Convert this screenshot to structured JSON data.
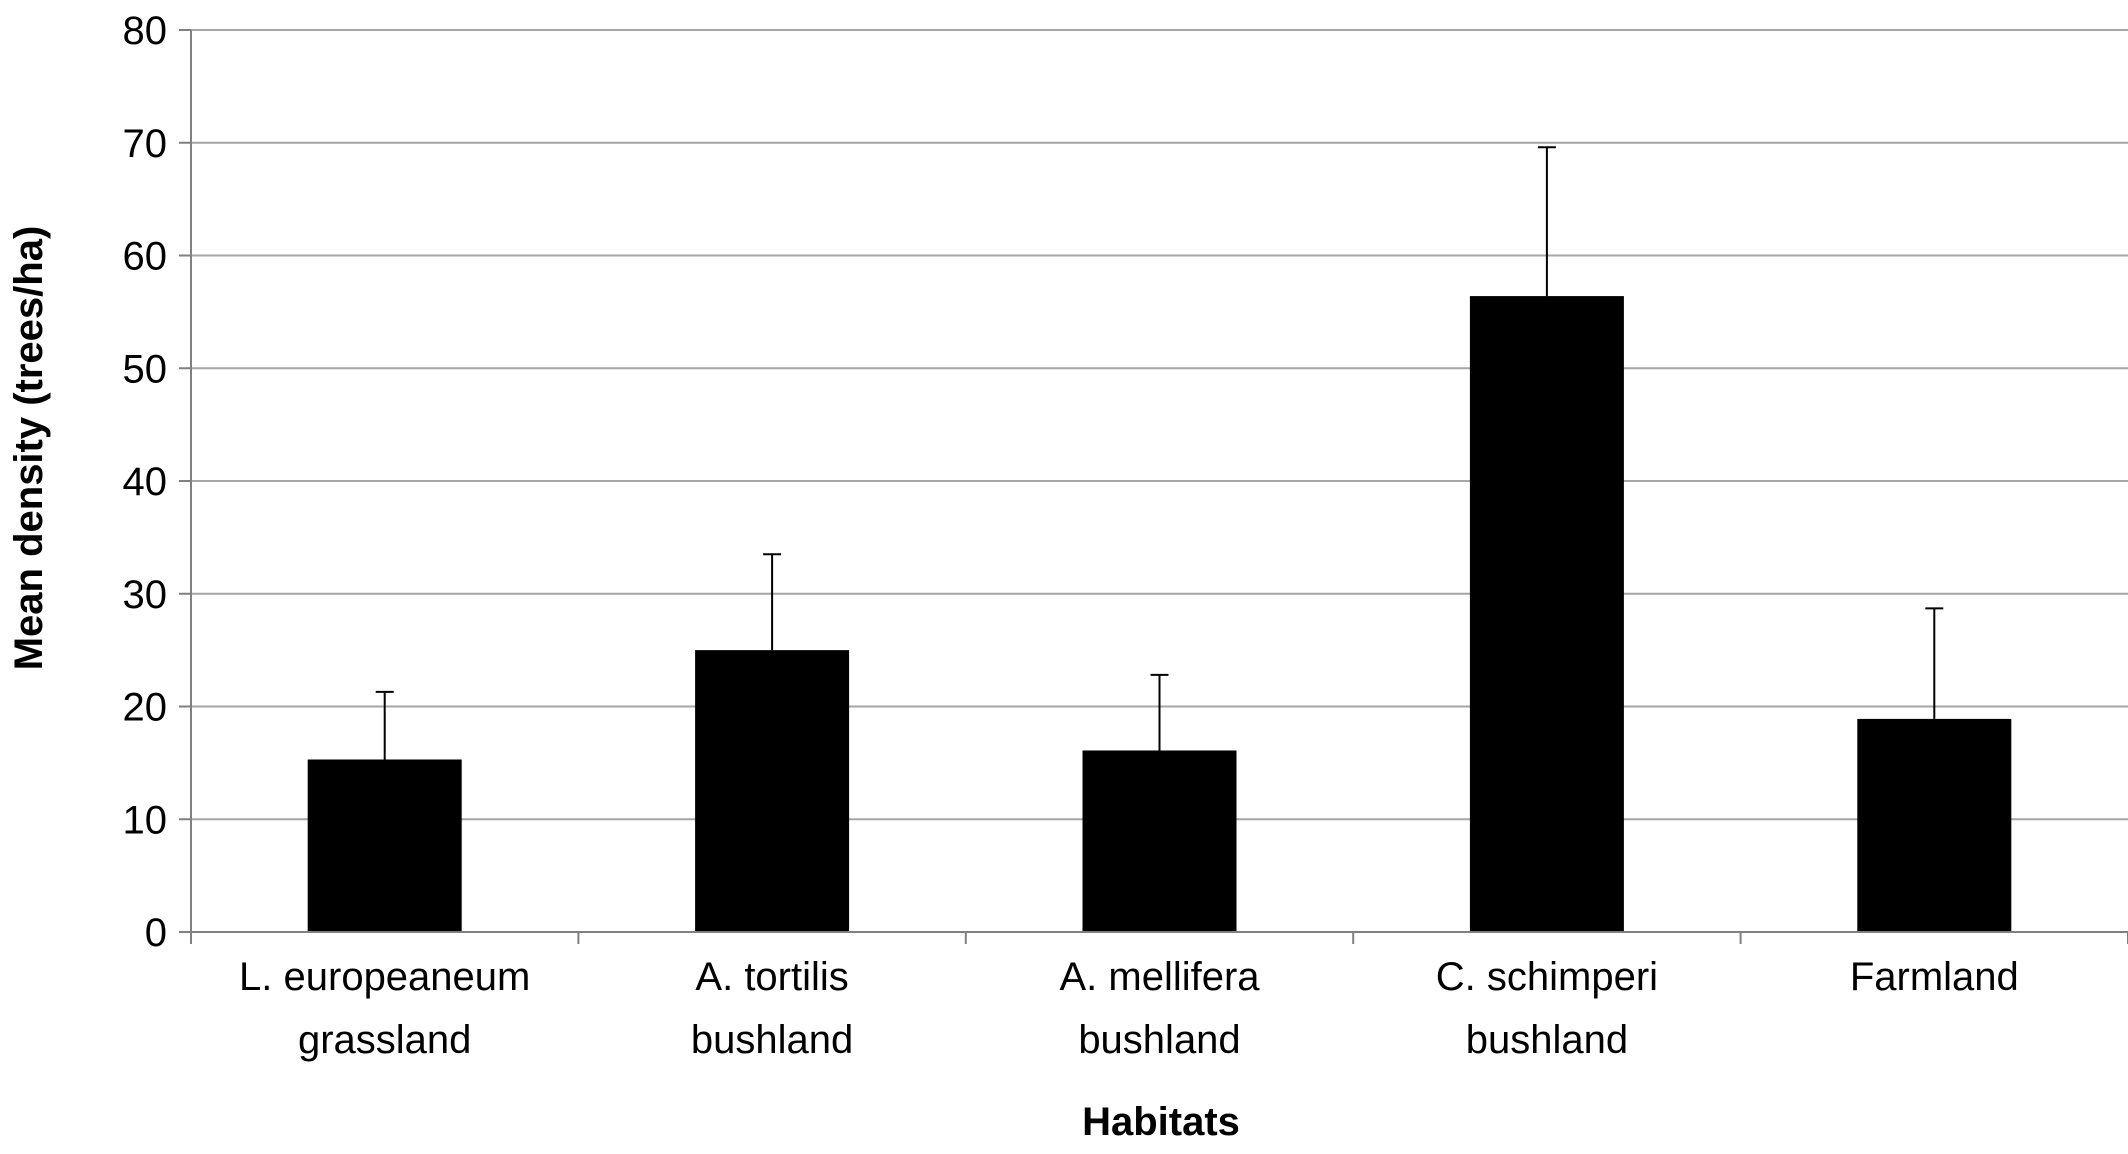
{
  "chart_data": {
    "type": "bar",
    "categories": [
      [
        "L. europeaneum",
        "grassland"
      ],
      [
        "A. tortilis",
        "bushland"
      ],
      [
        "A. mellifera",
        "bushland"
      ],
      [
        "C. schimperi",
        "bushland"
      ],
      [
        "Farmland"
      ]
    ],
    "series": [
      {
        "values": [
          15.3,
          25.0,
          16.1,
          56.4,
          18.9
        ],
        "error_plus": [
          6.0,
          8.5,
          6.7,
          13.2,
          9.8
        ],
        "color": "#000000"
      }
    ],
    "xlabel": "Habitats",
    "ylabel": "Mean density (trees/ha)",
    "ylim": [
      0,
      80
    ],
    "yticks": [
      0,
      10,
      20,
      30,
      40,
      50,
      60,
      70,
      80
    ],
    "grid": true,
    "legend": "none"
  }
}
